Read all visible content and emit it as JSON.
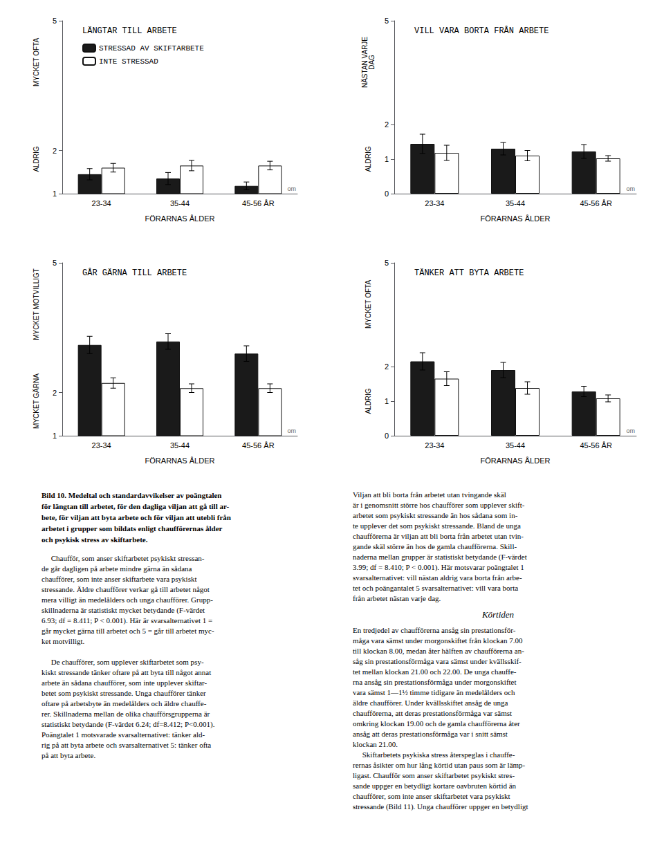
{
  "chart_data": [
    {
      "type": "bar",
      "title": "LÄNGTAR TILL ARBETE",
      "xlabel": "FÖRARNAS ÅLDER",
      "ylabel_top": "MYCKET OFTA",
      "ylabel_bottom": "ALDRIG",
      "categories": [
        "23-34",
        "35-44",
        "45-56 ÅR"
      ],
      "ylim": [
        1,
        5
      ],
      "yticks": [
        1,
        2,
        5
      ],
      "grid": false,
      "legend": "upper left",
      "annotations": [
        {
          "text": "om",
          "color": "#666666"
        }
      ],
      "series": [
        {
          "name": "STRESSAD AV SKIFTARBETE",
          "color": "#1a1a1a",
          "values": [
            1.45,
            1.35,
            1.18
          ],
          "errors": [
            0.13,
            0.14,
            0.09
          ]
        },
        {
          "name": "INTE STRESSAD",
          "color": "#ffffff",
          "values": [
            1.6,
            1.65,
            1.65
          ],
          "errors": [
            0.1,
            0.12,
            0.1
          ]
        }
      ]
    },
    {
      "type": "bar",
      "title": "VILL VARA BORTA FRÅN ARBETE",
      "xlabel": "FÖRARNAS ÅLDER",
      "ylabel_top": "NÄSTAN VARJE\nDAG",
      "ylabel_bottom": "ALDRIG",
      "categories": [
        "23-34",
        "35-44",
        "45-56 ÅR"
      ],
      "ylim": [
        0,
        5
      ],
      "yticks": [
        0,
        1,
        2,
        5
      ],
      "grid": false,
      "annotations": [
        {
          "text": "om",
          "color": "#666666"
        }
      ],
      "series": [
        {
          "name": "STRESSAD AV SKIFTARBETE",
          "color": "#1a1a1a",
          "values": [
            1.44,
            1.3,
            1.22
          ],
          "errors": [
            0.28,
            0.18,
            0.2
          ]
        },
        {
          "name": "INTE STRESSAD",
          "color": "#ffffff",
          "values": [
            1.18,
            1.1,
            1.02
          ],
          "errors": [
            0.22,
            0.15,
            0.08
          ]
        }
      ]
    },
    {
      "type": "bar",
      "title": "GÅR GÄRNA TILL ARBETE",
      "xlabel": "FÖRARNAS ÅLDER",
      "ylabel_top": "MYCKET MOTVILLIGT",
      "ylabel_bottom": "MYCKET GÄRNA",
      "categories": [
        "23-34",
        "35-44",
        "45-56 ÅR"
      ],
      "ylim": [
        1,
        5
      ],
      "yticks": [
        1,
        2,
        5
      ],
      "grid": false,
      "annotations": [
        {
          "text": "om",
          "color": "#666666"
        }
      ],
      "series": [
        {
          "name": "STRESSAD AV SKIFTARBETE",
          "color": "#1a1a1a",
          "values": [
            3.1,
            3.18,
            2.9
          ],
          "errors": [
            0.2,
            0.18,
            0.18
          ]
        },
        {
          "name": "INTE STRESSAD",
          "color": "#ffffff",
          "values": [
            2.22,
            2.1,
            2.1
          ],
          "errors": [
            0.12,
            0.1,
            0.1
          ]
        }
      ]
    },
    {
      "type": "bar",
      "title": "TÄNKER ATT BYTA ARBETE",
      "xlabel": "FÖRARNAS ÅLDER",
      "ylabel_top": "MYCKET OFTA",
      "ylabel_bottom": "ALDRIG",
      "categories": [
        "23-34",
        "35-44",
        "45-56 ÅR"
      ],
      "ylim": [
        0,
        5
      ],
      "yticks": [
        0,
        1,
        2,
        5
      ],
      "grid": false,
      "annotations": [
        {
          "text": "om",
          "color": "#666666"
        }
      ],
      "series": [
        {
          "name": "STRESSAD AV SKIFTARBETE",
          "color": "#1a1a1a",
          "values": [
            2.15,
            1.9,
            1.28
          ],
          "errors": [
            0.25,
            0.22,
            0.15
          ]
        },
        {
          "name": "INTE STRESSAD",
          "color": "#ffffff",
          "values": [
            1.65,
            1.38,
            1.08
          ],
          "errors": [
            0.2,
            0.18,
            0.1
          ]
        }
      ]
    }
  ],
  "caption": "Bild 10. Medeltal och standardavvikelser av poängtalen\nför längtan till arbetet, för den dagliga viljan att gå till ar-\nbete, för viljan att byta arbete och för viljan att utebli från\narbetet i grupper som bildats enligt chaufförernas ålder\noch psykisk stress av skiftarbete.",
  "text_columns": [
    [
      {
        "text": "     Chaufför, som anser skiftarbetet psykiskt stressan-\nde går dagligen på arbete mindre gärna än sådana\nchaufförer, som inte anser skiftarbete vara psykiskt\nstressande. Äldre chaufförer verkar gå till arbetet något\nmera villigt än medelålders och unga chaufförer. Grupp-\nskillnaderna är statistiskt mycket betydande (F-värdet\n6.93; df = 8.411; P < 0.001). Här är svarsalternativet 1 =\ngår mycket gärna till arbetet och 5 = går till arbetet myc-\nket motvilligt.\n\n     De chaufförer, som upplever skiftarbetet som psy-\nkiskt stressande tänker oftare på att byta till något annat\narbete än sådana chaufförer, som inte upplever skiftar-\nbetet som psykiskt stressande. Unga chaufförer tänker\noftare på arbetsbyte än medelålders och äldre chauffe-\nrer. Skillnaderna mellan de olika chaufförsgrupperna är\nstatistiskt betydande (F-värdet 6.24; df=8.412; P<0.001).\nPoängtalet 1 motsvarade svarsalternativet: tänker ald-\nrig på att byta arbete och svarsalternativet 5: tänker ofta\npå att byta arbete."
      }
    ],
    [
      {
        "text": "Viljan att bli borta från arbetet utan tvingande skäl\när i genomsnitt större hos chaufförer som upplever skift-\narbetet som psykiskt stressande än hos sådana som in-\nte upplever det som psykiskt stressande. Bland de unga\nchaufförerna är viljan att bli borta från arbetet utan tvin-\ngande skäl större än hos de gamla chaufförerna. Skill-\nnaderna mellan grupper är statistiskt betydande (F-värdet\n3.99; df = 8.410; P < 0.001). Här motsvarar poängtalet 1\nsvarsalternativet: vill nästan aldrig vara borta från arbe-\ntet och poängantalet 5 svarsalternativet: vill vara borta\nfrån arbetet nästan varje dag."
      },
      {
        "heading": "Körtiden"
      },
      {
        "text": "En tredjedel av chaufförerna ansåg sin prestationsför-\nmåga vara sämst under morgonskiftet från klockan 7.00\ntill klockan 8.00, medan åter hälften av chaufförerna an-\nsåg sin prestationsförmåga vara sämst under kvällsskif-\ntet mellan klockan 21.00 och 22.00. De unga chauffe-\nrna ansåg sin prestationsförmåga under morgonskiftet\nvara sämst 1—1½ timme tidigare än medelålders och\näldre chaufförer. Under kvällsskiftet ansåg de unga\nchaufförerna, att deras prestationsförmåga var sämst\nomkring klockan 19.00 och de gamla chaufförerna åter\nansåg att deras prestationsförmåga var i snitt sämst\nklockan 21.00.\n     Skiftarbetets psykiska stress återspeglas i chauffe-\nrernas åsikter om hur lång körtid utan paus som är lämp-\nligast. Chaufför som anser skiftarbetet psykiskt stres-\nsande uppger en betydligt kortare oavbruten körtid än\nchaufförer, som inte anser skiftarbetet vara psykiskt\nstressande (Bild 11). Unga chaufförer uppger en betydligt"
      }
    ]
  ]
}
